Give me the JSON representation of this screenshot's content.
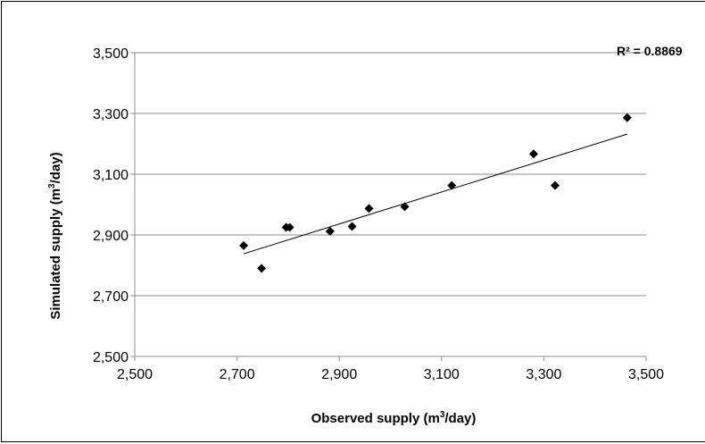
{
  "chart_data": {
    "type": "scatter",
    "xlabel": {
      "main": "Observed supply (m",
      "sup": "3",
      "end": "/day)"
    },
    "ylabel": {
      "main": "Simulated supply (m",
      "sup": "3",
      "end": "/day)"
    },
    "xlim": [
      2500,
      3500
    ],
    "ylim": [
      2500,
      3500
    ],
    "x_ticks": [
      2500,
      2700,
      2900,
      3100,
      3300,
      3500
    ],
    "y_ticks": [
      2500,
      2700,
      2900,
      3100,
      3300,
      3500
    ],
    "x_tick_labels": [
      "2,500",
      "2,700",
      "2,900",
      "3,100",
      "3,300",
      "3,500"
    ],
    "y_tick_labels": [
      "2,500",
      "2,700",
      "2,900",
      "3,100",
      "3,300",
      "3,500"
    ],
    "grid": {
      "horizontal": true,
      "vertical": false
    },
    "marker": "diamond",
    "marker_color": "#000000",
    "points": [
      {
        "x": 2713,
        "y": 2865
      },
      {
        "x": 2748,
        "y": 2790
      },
      {
        "x": 2796,
        "y": 2925
      },
      {
        "x": 2803,
        "y": 2925
      },
      {
        "x": 2882,
        "y": 2912
      },
      {
        "x": 2925,
        "y": 2928
      },
      {
        "x": 2958,
        "y": 2987
      },
      {
        "x": 3028,
        "y": 2993
      },
      {
        "x": 3120,
        "y": 3063
      },
      {
        "x": 3280,
        "y": 3167
      },
      {
        "x": 3322,
        "y": 3063
      },
      {
        "x": 3463,
        "y": 3286
      }
    ],
    "trendline": {
      "x_start": 2713,
      "y_start": 2838,
      "x_end": 3463,
      "y_end": 3232
    },
    "annotation": "R² = 0.8869"
  }
}
